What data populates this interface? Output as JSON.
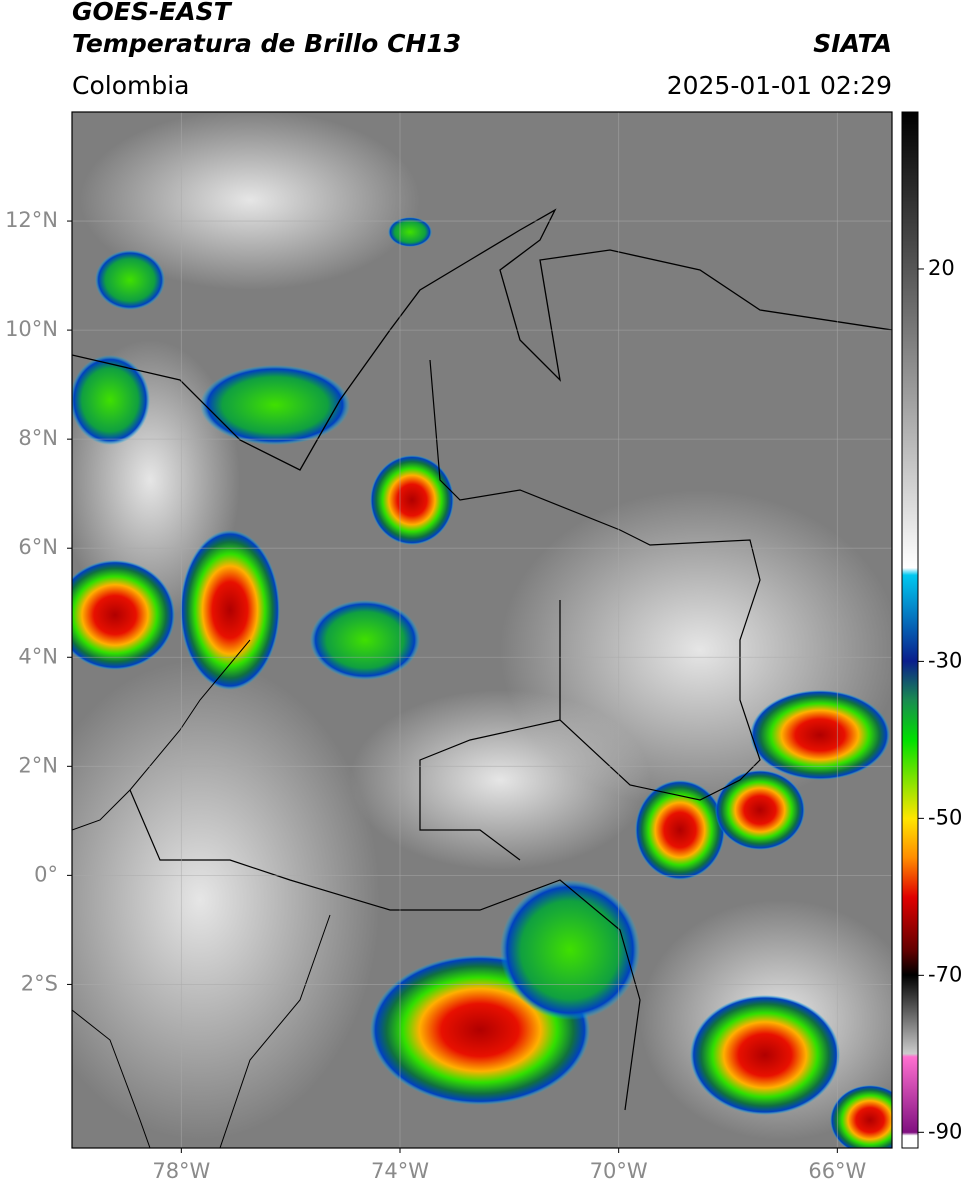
{
  "header": {
    "title": "GOES-EAST",
    "subtitle": "Temperatura de Brillo CH13",
    "source": "SIATA",
    "region": "Colombia",
    "timestamp": "2025-01-01 02:29"
  },
  "map": {
    "xlim": [
      -80,
      -65
    ],
    "ylim": [
      -5,
      14
    ],
    "xticks": [
      {
        "value": -78,
        "label": "78°W"
      },
      {
        "value": -74,
        "label": "74°W"
      },
      {
        "value": -70,
        "label": "70°W"
      },
      {
        "value": -66,
        "label": "66°W"
      }
    ],
    "yticks": [
      {
        "value": 12,
        "label": "12°N"
      },
      {
        "value": 10,
        "label": "10°N"
      },
      {
        "value": 8,
        "label": "8°N"
      },
      {
        "value": 6,
        "label": "6°N"
      },
      {
        "value": 4,
        "label": "4°N"
      },
      {
        "value": 2,
        "label": "2°N"
      },
      {
        "value": 0,
        "label": "0°"
      },
      {
        "value": -2,
        "label": "2°S"
      }
    ],
    "grid": true
  },
  "colorbar": {
    "lim": [
      -92,
      40
    ],
    "ticks": [
      20,
      -30,
      -50,
      -70,
      -90
    ]
  }
}
